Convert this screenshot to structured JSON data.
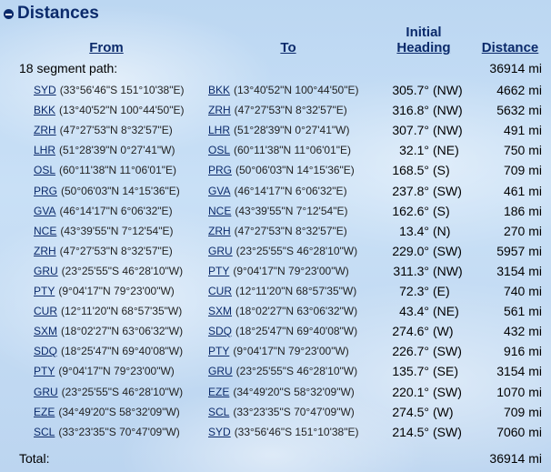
{
  "section": {
    "title": "Distances",
    "collapse_icon": "collapse-minus-icon"
  },
  "columns": {
    "from": "From",
    "to": "To",
    "heading_line1": "Initial",
    "heading_line2": "Heading",
    "distance": "Distance"
  },
  "path_summary": {
    "label": "18 segment path:",
    "distance": "36914 mi"
  },
  "segments": [
    {
      "from_code": "SYD",
      "from_coords": "(33°56'46\"S 151°10'38\"E)",
      "to_code": "BKK",
      "to_coords": "(13°40'52\"N 100°44'50\"E)",
      "heading": "305.7°",
      "dir": "(NW)",
      "distance": "4662 mi"
    },
    {
      "from_code": "BKK",
      "from_coords": "(13°40'52\"N 100°44'50\"E)",
      "to_code": "ZRH",
      "to_coords": "(47°27'53\"N 8°32'57\"E)",
      "heading": "316.8°",
      "dir": "(NW)",
      "distance": "5632 mi"
    },
    {
      "from_code": "ZRH",
      "from_coords": "(47°27'53\"N 8°32'57\"E)",
      "to_code": "LHR",
      "to_coords": "(51°28'39\"N 0°27'41\"W)",
      "heading": "307.7°",
      "dir": "(NW)",
      "distance": "491 mi"
    },
    {
      "from_code": "LHR",
      "from_coords": "(51°28'39\"N 0°27'41\"W)",
      "to_code": "OSL",
      "to_coords": "(60°11'38\"N 11°06'01\"E)",
      "heading": "32.1°",
      "dir": "(NE)",
      "distance": "750 mi"
    },
    {
      "from_code": "OSL",
      "from_coords": "(60°11'38\"N 11°06'01\"E)",
      "to_code": "PRG",
      "to_coords": "(50°06'03\"N 14°15'36\"E)",
      "heading": "168.5°",
      "dir": "(S)",
      "distance": "709 mi"
    },
    {
      "from_code": "PRG",
      "from_coords": "(50°06'03\"N 14°15'36\"E)",
      "to_code": "GVA",
      "to_coords": "(46°14'17\"N 6°06'32\"E)",
      "heading": "237.8°",
      "dir": "(SW)",
      "distance": "461 mi"
    },
    {
      "from_code": "GVA",
      "from_coords": "(46°14'17\"N 6°06'32\"E)",
      "to_code": "NCE",
      "to_coords": "(43°39'55\"N 7°12'54\"E)",
      "heading": "162.6°",
      "dir": "(S)",
      "distance": "186 mi"
    },
    {
      "from_code": "NCE",
      "from_coords": "(43°39'55\"N 7°12'54\"E)",
      "to_code": "ZRH",
      "to_coords": "(47°27'53\"N 8°32'57\"E)",
      "heading": "13.4°",
      "dir": "(N)",
      "distance": "270 mi"
    },
    {
      "from_code": "ZRH",
      "from_coords": "(47°27'53\"N 8°32'57\"E)",
      "to_code": "GRU",
      "to_coords": "(23°25'55\"S 46°28'10\"W)",
      "heading": "229.0°",
      "dir": "(SW)",
      "distance": "5957 mi"
    },
    {
      "from_code": "GRU",
      "from_coords": "(23°25'55\"S 46°28'10\"W)",
      "to_code": "PTY",
      "to_coords": "(9°04'17\"N 79°23'00\"W)",
      "heading": "311.3°",
      "dir": "(NW)",
      "distance": "3154 mi"
    },
    {
      "from_code": "PTY",
      "from_coords": "(9°04'17\"N 79°23'00\"W)",
      "to_code": "CUR",
      "to_coords": "(12°11'20\"N 68°57'35\"W)",
      "heading": "72.3°",
      "dir": "(E)",
      "distance": "740 mi"
    },
    {
      "from_code": "CUR",
      "from_coords": "(12°11'20\"N 68°57'35\"W)",
      "to_code": "SXM",
      "to_coords": "(18°02'27\"N 63°06'32\"W)",
      "heading": "43.4°",
      "dir": "(NE)",
      "distance": "561 mi"
    },
    {
      "from_code": "SXM",
      "from_coords": "(18°02'27\"N 63°06'32\"W)",
      "to_code": "SDQ",
      "to_coords": "(18°25'47\"N 69°40'08\"W)",
      "heading": "274.6°",
      "dir": "(W)",
      "distance": "432 mi"
    },
    {
      "from_code": "SDQ",
      "from_coords": "(18°25'47\"N 69°40'08\"W)",
      "to_code": "PTY",
      "to_coords": "(9°04'17\"N 79°23'00\"W)",
      "heading": "226.7°",
      "dir": "(SW)",
      "distance": "916 mi"
    },
    {
      "from_code": "PTY",
      "from_coords": "(9°04'17\"N 79°23'00\"W)",
      "to_code": "GRU",
      "to_coords": "(23°25'55\"S 46°28'10\"W)",
      "heading": "135.7°",
      "dir": "(SE)",
      "distance": "3154 mi"
    },
    {
      "from_code": "GRU",
      "from_coords": "(23°25'55\"S 46°28'10\"W)",
      "to_code": "EZE",
      "to_coords": "(34°49'20\"S 58°32'09\"W)",
      "heading": "220.1°",
      "dir": "(SW)",
      "distance": "1070 mi"
    },
    {
      "from_code": "EZE",
      "from_coords": "(34°49'20\"S 58°32'09\"W)",
      "to_code": "SCL",
      "to_coords": "(33°23'35\"S 70°47'09\"W)",
      "heading": "274.5°",
      "dir": "(W)",
      "distance": "709 mi"
    },
    {
      "from_code": "SCL",
      "from_coords": "(33°23'35\"S 70°47'09\"W)",
      "to_code": "SYD",
      "to_coords": "(33°56'46\"S 151°10'38\"E)",
      "heading": "214.5°",
      "dir": "(SW)",
      "distance": "7060 mi"
    }
  ],
  "total": {
    "label": "Total:",
    "distance": "36914 mi"
  }
}
